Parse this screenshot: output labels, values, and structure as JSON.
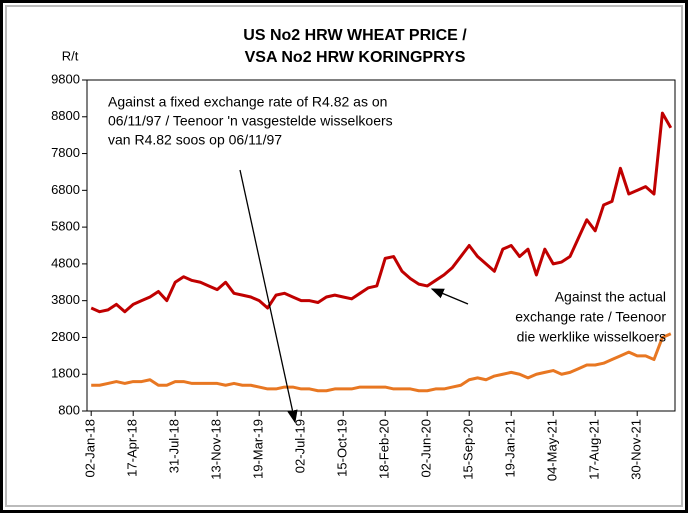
{
  "chart_data": {
    "type": "line",
    "title": [
      "US No2 HRW WHEAT PRICE /",
      "VSA No2 HRW KORINGPRYS"
    ],
    "y_label": "R/t",
    "annotations": [
      [
        "Against a fixed  exchange rate of R4.82 as on",
        "06/11/97 / Teenoor 'n vasgestelde wisselkoers",
        "van R4.82 soos op 06/11/97"
      ],
      [
        "Against the actual",
        "exchange rate / Teenoor",
        "die werklike wisselkoers"
      ]
    ],
    "categories": [
      "02-Jan-18",
      null,
      null,
      null,
      null,
      "17-Apr-18",
      null,
      null,
      null,
      null,
      "31-Jul-18",
      null,
      null,
      null,
      null,
      "13-Nov-18",
      null,
      null,
      null,
      null,
      "19-Mar-19",
      null,
      null,
      null,
      null,
      "02-Jul-19",
      null,
      null,
      null,
      null,
      "15-Oct-19",
      null,
      null,
      null,
      null,
      "18-Feb-20",
      null,
      null,
      null,
      null,
      "02-Jun-20",
      null,
      null,
      null,
      null,
      "15-Sep-20",
      null,
      null,
      null,
      null,
      "19-Jan-21",
      null,
      null,
      null,
      null,
      "04-May-21",
      null,
      null,
      null,
      null,
      "17-Aug-21",
      null,
      null,
      null,
      null,
      "30-Nov-21",
      null,
      null,
      null,
      null
    ],
    "series": [
      {
        "name": "Against a fixed exchange rate",
        "color": "#c00000",
        "values": [
          3600,
          3500,
          3550,
          3700,
          3500,
          3700,
          3800,
          3900,
          4050,
          3800,
          4300,
          4450,
          4350,
          4300,
          4200,
          4100,
          4300,
          4000,
          3950,
          3900,
          3800,
          3600,
          3950,
          4000,
          3900,
          3800,
          3800,
          3750,
          3900,
          3950,
          3900,
          3850,
          4000,
          4150,
          4200,
          4950,
          5000,
          4600,
          4400,
          4250,
          4200,
          4350,
          4500,
          4700,
          5000,
          5300,
          5000,
          4800,
          4600,
          5200,
          5300,
          5000,
          5200,
          4500,
          5200,
          4800,
          4850,
          5000,
          5500,
          6000,
          5700,
          6400,
          6500,
          7400,
          6700,
          6800,
          6900,
          6700,
          8900,
          8500
        ]
      },
      {
        "name": "Against the actual exchange rate",
        "color": "#e87722",
        "values": [
          1500,
          1500,
          1550,
          1600,
          1550,
          1600,
          1600,
          1650,
          1500,
          1500,
          1600,
          1600,
          1550,
          1550,
          1550,
          1550,
          1500,
          1550,
          1500,
          1500,
          1450,
          1400,
          1400,
          1450,
          1450,
          1400,
          1400,
          1350,
          1350,
          1400,
          1400,
          1400,
          1450,
          1450,
          1450,
          1450,
          1400,
          1400,
          1400,
          1350,
          1350,
          1400,
          1400,
          1450,
          1500,
          1650,
          1700,
          1650,
          1750,
          1800,
          1850,
          1800,
          1700,
          1800,
          1850,
          1900,
          1800,
          1850,
          1950,
          2050,
          2050,
          2100,
          2200,
          2300,
          2400,
          2300,
          2300,
          2200,
          2800,
          2900
        ]
      }
    ],
    "ylim": [
      800,
      9800
    ],
    "yticks": [
      800,
      1800,
      2800,
      3800,
      4800,
      5800,
      6800,
      7800,
      8800,
      9800
    ]
  }
}
